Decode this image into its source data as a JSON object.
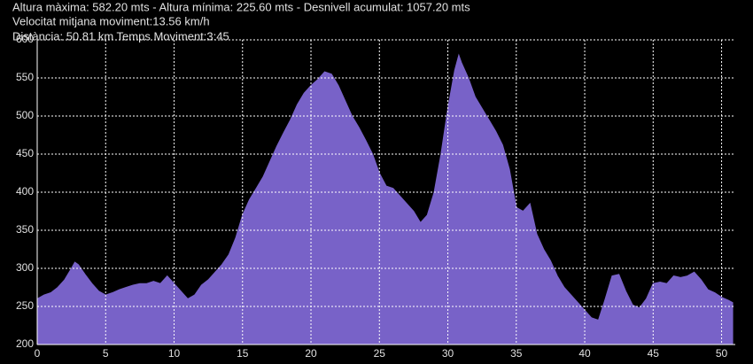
{
  "chart_data": {
    "type": "area",
    "annotations": [
      "Altura màxima: 582.20 mts - Altura mínima: 225.60 mts - Desnivell acumulat: 1057.20 mts",
      "Velocitat mitjana moviment:13.56 km/h",
      "Distància: 50.81 km  Temps Moviment:3:45"
    ],
    "x": [
      0,
      0.5,
      1,
      1.5,
      2,
      2.5,
      2.75,
      3,
      3.5,
      4,
      4.5,
      5,
      5.5,
      6,
      6.5,
      7,
      7.5,
      8,
      8.5,
      9,
      9.5,
      10,
      10.5,
      11,
      11.5,
      12,
      12.5,
      13,
      13.5,
      14,
      14.5,
      15,
      15.5,
      16,
      16.5,
      17,
      17.5,
      18,
      18.5,
      19,
      19.5,
      20,
      20.5,
      21,
      21.5,
      22,
      22.5,
      23,
      23.5,
      24,
      24.5,
      25,
      25.5,
      26,
      26.5,
      27,
      27.5,
      28,
      28.5,
      29,
      29.5,
      30,
      30.5,
      30.8,
      31,
      31.5,
      32,
      32.5,
      33,
      33.5,
      34,
      34.5,
      35,
      35.5,
      36,
      36.5,
      37,
      37.5,
      38,
      38.5,
      39,
      39.5,
      40,
      40.5,
      41,
      41.5,
      42,
      42.5,
      43,
      43.5,
      44,
      44.5,
      45,
      45.5,
      46,
      46.5,
      47,
      47.5,
      48,
      48.5,
      49,
      49.5,
      50,
      50.5,
      50.81
    ],
    "values": [
      260,
      265,
      268,
      275,
      285,
      300,
      308,
      305,
      292,
      280,
      270,
      265,
      268,
      272,
      275,
      278,
      280,
      280,
      283,
      280,
      290,
      280,
      270,
      260,
      265,
      278,
      285,
      295,
      305,
      318,
      340,
      370,
      390,
      405,
      420,
      440,
      460,
      478,
      495,
      515,
      530,
      540,
      548,
      558,
      555,
      540,
      520,
      500,
      485,
      468,
      450,
      425,
      408,
      405,
      395,
      385,
      375,
      360,
      370,
      400,
      450,
      510,
      560,
      580,
      570,
      550,
      525,
      510,
      495,
      480,
      462,
      430,
      380,
      375,
      385,
      345,
      325,
      310,
      290,
      275,
      265,
      255,
      245,
      235,
      232,
      260,
      290,
      292,
      270,
      252,
      248,
      260,
      280,
      282,
      280,
      290,
      288,
      290,
      295,
      285,
      272,
      268,
      262,
      258,
      255
    ],
    "color": "#7862c8",
    "xlim": [
      0,
      51
    ],
    "ylim": [
      200,
      600
    ],
    "xticks": [
      0,
      5,
      10,
      15,
      20,
      25,
      30,
      35,
      40,
      45,
      50
    ],
    "yticks": [
      200,
      250,
      300,
      350,
      400,
      450,
      500,
      550,
      600
    ],
    "grid": true
  }
}
